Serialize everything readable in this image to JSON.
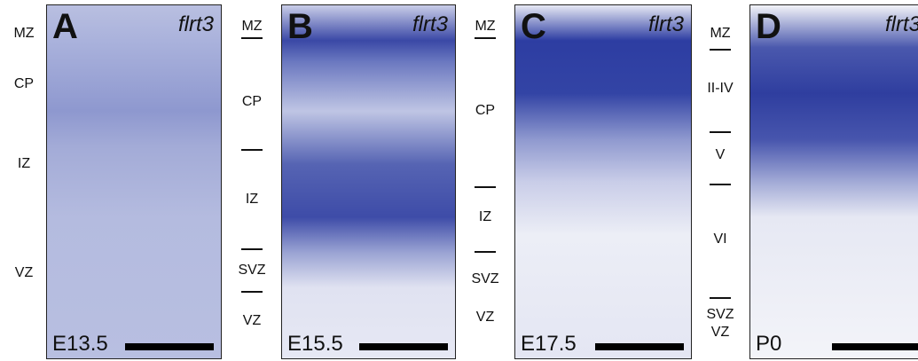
{
  "panels": [
    {
      "letter": "A",
      "gene": "flrt3",
      "stage": "E13.5",
      "layers": [
        "MZ",
        "CP",
        "IZ",
        "VZ"
      ]
    },
    {
      "letter": "B",
      "gene": "flrt3",
      "stage": "E15.5",
      "layers": [
        "MZ",
        "CP",
        "IZ",
        "SVZ",
        "VZ"
      ]
    },
    {
      "letter": "C",
      "gene": "flrt3",
      "stage": "E17.5",
      "layers": [
        "MZ",
        "CP",
        "IZ",
        "SVZ",
        "VZ"
      ]
    },
    {
      "letter": "D",
      "gene": "flrt3",
      "stage": "P0",
      "layers": [
        "MZ",
        "II-IV",
        "V",
        "VI",
        "SVZ",
        "VZ"
      ]
    }
  ]
}
